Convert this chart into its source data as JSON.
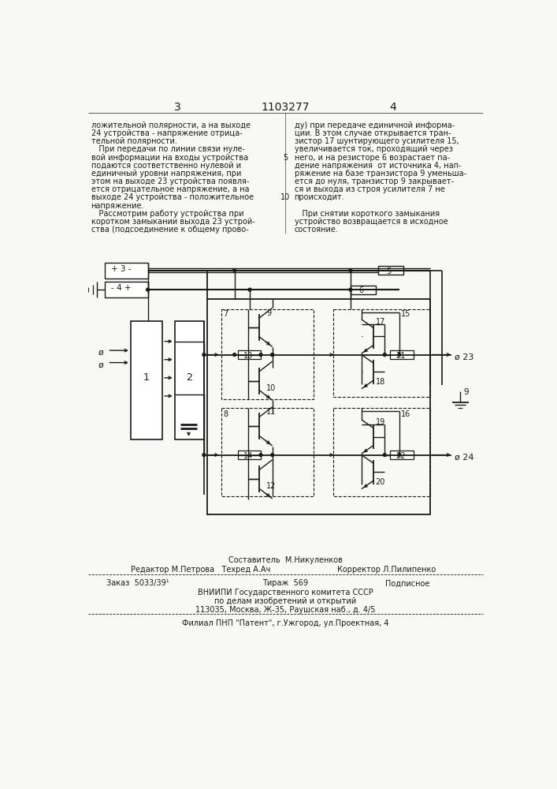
{
  "page_number_left": "3",
  "patent_number": "1103277",
  "page_number_right": "4",
  "text_col1": [
    "ложительной полярности, а на выходе",
    "24 устройства - напряжение отрица-",
    "тельной полярности.",
    "   При передачи по линии связи нуле-",
    "вой информации на входы устройства",
    "подаются соответственно нулевой и",
    "единичный уровни напряжения, при",
    "этом на выходе 23 устройства появля-",
    "ется отрицательное напряжение, а на",
    "выходе 24 устройства - положительное",
    "напряжение.",
    "   Рассмотрим работу устройства при",
    "коротком замыкании выхода 23 устрой-",
    "ства (подсоединение к общему прово-"
  ],
  "text_col2": [
    "ду) при передаче единичной информа-",
    "ции. В этом случае открывается тран-",
    "зистор 17 шунтирующего усилителя 15,",
    "увеличивается ток, проходящий через",
    "него, и на резисторе 6 возрастает па-",
    "дение напряжения  от источника 4, нап-",
    "ряжение на базе транзистора 9 уменьша-",
    "ется до нуля, транзистор 9 закрывает-",
    "ся и выхода из строя усилителя 7 не",
    "происходит.",
    "",
    "   При снятии короткого замыкания",
    "устройство возвращается в исходное",
    "состояние."
  ],
  "footer_composer": "Составитель  М.Никуленков",
  "footer_editor": "Редактор М.Петрова   Техред А.Ач",
  "footer_corrector": "Корректор Л.Пилипенко",
  "footer_order": "Заказ  5033/39¹",
  "footer_edition": "Тираж  569",
  "footer_subscription": "Подписное",
  "footer_org": "ВНИИПИ Государственного комитета СССР",
  "footer_org2": "по делам изобретений и открытий",
  "footer_address": "113035, Москва, Ж-35, Раушская наб., д. 4/5",
  "footer_branch": "Филиал ПНП \"Патент\", г.Ужгород, ул.Проектная, 4",
  "bg_color": "#f8f8f4",
  "text_color": "#1a1a1a"
}
